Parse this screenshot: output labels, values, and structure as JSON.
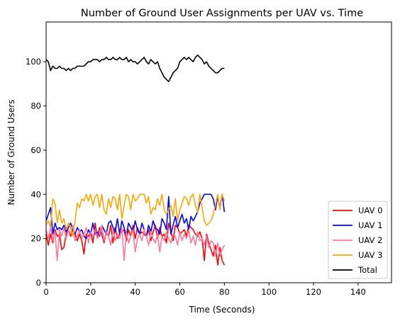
{
  "chart_data": {
    "type": "line",
    "title": "Number of Ground User Assignments per UAV vs. Time",
    "xlabel": "Time (Seconds)",
    "ylabel": "Number of Ground Users",
    "xlim": [
      0,
      155
    ],
    "ylim": [
      0,
      118
    ],
    "xticks": [
      0,
      20,
      40,
      60,
      80,
      100,
      120,
      140
    ],
    "yticks": [
      0,
      20,
      40,
      60,
      80,
      100
    ],
    "grid": false,
    "legend_position": "lower-right",
    "series": [
      {
        "name": "UAV 0",
        "color": "#ff0000",
        "x": [
          0,
          1,
          2,
          3,
          4,
          5,
          6,
          7,
          8,
          9,
          10,
          11,
          12,
          13,
          14,
          15,
          16,
          17,
          18,
          19,
          20,
          21,
          22,
          23,
          24,
          25,
          26,
          27,
          28,
          29,
          30,
          31,
          32,
          33,
          34,
          35,
          36,
          37,
          38,
          39,
          40,
          41,
          42,
          43,
          44,
          45,
          46,
          47,
          48,
          49,
          50,
          51,
          52,
          53,
          54,
          55,
          56,
          57,
          58,
          59,
          60,
          61,
          62,
          63,
          64,
          65,
          66,
          67,
          68,
          69,
          70,
          71,
          72,
          73,
          74,
          75,
          76,
          77,
          78,
          79,
          80
        ],
        "values": [
          22,
          17,
          22,
          18,
          24,
          21,
          22,
          15,
          16,
          22,
          24,
          21,
          24,
          22,
          19,
          22,
          19,
          13,
          22,
          21,
          23,
          18,
          27,
          20,
          25,
          22,
          18,
          23,
          21,
          26,
          18,
          25,
          20,
          22,
          23,
          24,
          19,
          24,
          21,
          26,
          20,
          25,
          22,
          23,
          22,
          21,
          24,
          19,
          23,
          26,
          20,
          25,
          21,
          22,
          18,
          27,
          23,
          19,
          26,
          25,
          22,
          23,
          24,
          21,
          26,
          25,
          24,
          22,
          21,
          23,
          20,
          10,
          22,
          18,
          15,
          12,
          17,
          8,
          16,
          10,
          8
        ]
      },
      {
        "name": "UAV 1",
        "color": "#0000ff",
        "x": [
          0,
          1,
          2,
          3,
          4,
          5,
          6,
          7,
          8,
          9,
          10,
          11,
          12,
          13,
          14,
          15,
          16,
          17,
          18,
          19,
          20,
          21,
          22,
          23,
          24,
          25,
          26,
          27,
          28,
          29,
          30,
          31,
          32,
          33,
          34,
          35,
          36,
          37,
          38,
          39,
          40,
          41,
          42,
          43,
          44,
          45,
          46,
          47,
          48,
          49,
          50,
          51,
          52,
          53,
          54,
          55,
          56,
          57,
          58,
          59,
          60,
          61,
          62,
          63,
          64,
          65,
          66,
          67,
          68,
          69,
          70,
          71,
          72,
          73,
          74,
          75,
          76,
          77,
          78,
          79,
          80
        ],
        "values": [
          28,
          31,
          34,
          22,
          27,
          24,
          25,
          24,
          26,
          23,
          25,
          27,
          24,
          22,
          25,
          23,
          24,
          21,
          20,
          24,
          22,
          27,
          22,
          23,
          21,
          26,
          24,
          22,
          27,
          28,
          25,
          23,
          29,
          22,
          28,
          25,
          21,
          27,
          25,
          23,
          28,
          24,
          22,
          27,
          24,
          21,
          26,
          23,
          28,
          25,
          24,
          22,
          29,
          27,
          24,
          39,
          22,
          26,
          30,
          25,
          28,
          31,
          27,
          29,
          24,
          30,
          28,
          30,
          32,
          36,
          38,
          40,
          40,
          40,
          40,
          38,
          33,
          39,
          34,
          40,
          32
        ]
      },
      {
        "name": "UAV 2",
        "color": "#ff7799",
        "x": [
          0,
          1,
          2,
          3,
          4,
          5,
          6,
          7,
          8,
          9,
          10,
          11,
          12,
          13,
          14,
          15,
          16,
          17,
          18,
          19,
          20,
          21,
          22,
          23,
          24,
          25,
          26,
          27,
          28,
          29,
          30,
          31,
          32,
          33,
          34,
          35,
          36,
          37,
          38,
          39,
          40,
          41,
          42,
          43,
          44,
          45,
          46,
          47,
          48,
          49,
          50,
          51,
          52,
          53,
          54,
          55,
          56,
          57,
          58,
          59,
          60,
          61,
          62,
          63,
          64,
          65,
          66,
          67,
          68,
          69,
          70,
          71,
          72,
          73,
          74,
          75,
          76,
          77,
          78,
          79,
          80
        ],
        "values": [
          24,
          20,
          25,
          19,
          23,
          10,
          24,
          21,
          25,
          20,
          24,
          22,
          26,
          19,
          21,
          24,
          20,
          22,
          25,
          18,
          23,
          21,
          24,
          20,
          22,
          26,
          19,
          23,
          21,
          17,
          24,
          19,
          22,
          20,
          25,
          10,
          23,
          18,
          21,
          24,
          14,
          20,
          22,
          19,
          24,
          21,
          17,
          23,
          20,
          18,
          22,
          14,
          21,
          19,
          23,
          20,
          18,
          22,
          21,
          17,
          23,
          19,
          22,
          20,
          24,
          18,
          21,
          17,
          23,
          19,
          20,
          17,
          21,
          16,
          19,
          18,
          12,
          18,
          12,
          15,
          17
        ]
      },
      {
        "name": "UAV 3",
        "color": "#ffa500",
        "x": [
          0,
          1,
          2,
          3,
          4,
          5,
          6,
          7,
          8,
          9,
          10,
          11,
          12,
          13,
          14,
          15,
          16,
          17,
          18,
          19,
          20,
          21,
          22,
          23,
          24,
          25,
          26,
          27,
          28,
          29,
          30,
          31,
          32,
          33,
          34,
          35,
          36,
          37,
          38,
          39,
          40,
          41,
          42,
          43,
          44,
          45,
          46,
          47,
          48,
          49,
          50,
          51,
          52,
          53,
          54,
          55,
          56,
          57,
          58,
          59,
          60,
          61,
          62,
          63,
          64,
          65,
          66,
          67,
          68,
          69,
          70,
          71,
          72,
          73,
          74,
          75,
          76,
          77,
          78,
          79,
          80
        ],
        "values": [
          26,
          28,
          25,
          38,
          36,
          27,
          33,
          27,
          29,
          24,
          27,
          25,
          21,
          28,
          36,
          34,
          38,
          37,
          40,
          37,
          40,
          35,
          39,
          40,
          34,
          40,
          33,
          31,
          38,
          34,
          39,
          38,
          33,
          40,
          29,
          35,
          40,
          39,
          33,
          40,
          37,
          38,
          40,
          40,
          40,
          36,
          39,
          31,
          34,
          33,
          38,
          35,
          40,
          33,
          31,
          33,
          35,
          30,
          38,
          28,
          33,
          36,
          39,
          38,
          35,
          39,
          40,
          35,
          32,
          40,
          34,
          28,
          26,
          27,
          28,
          31,
          35,
          40,
          33,
          40,
          37
        ]
      },
      {
        "name": "Total",
        "color": "#000000",
        "x": [
          0,
          1,
          2,
          3,
          4,
          5,
          6,
          7,
          8,
          9,
          10,
          11,
          12,
          13,
          14,
          15,
          16,
          17,
          18,
          19,
          20,
          21,
          22,
          23,
          24,
          25,
          26,
          27,
          28,
          29,
          30,
          31,
          32,
          33,
          34,
          35,
          36,
          37,
          38,
          39,
          40,
          41,
          42,
          43,
          44,
          45,
          46,
          47,
          48,
          49,
          50,
          51,
          52,
          53,
          54,
          55,
          56,
          57,
          58,
          59,
          60,
          61,
          62,
          63,
          64,
          65,
          66,
          67,
          68,
          69,
          70,
          71,
          72,
          73,
          74,
          75,
          76,
          77,
          78,
          79,
          80
        ],
        "values": [
          101,
          100,
          96,
          98,
          97,
          97,
          98,
          97,
          97,
          96,
          97,
          96,
          97,
          97,
          98,
          98,
          98,
          98,
          99,
          100,
          100,
          101,
          101,
          101,
          100,
          101,
          101,
          102,
          101,
          101,
          102,
          101,
          101,
          102,
          101,
          101,
          102,
          100,
          101,
          100,
          100,
          99,
          100,
          101,
          102,
          100,
          99,
          101,
          100,
          99,
          100,
          97,
          95,
          93,
          92,
          91,
          93,
          95,
          96,
          97,
          100,
          101,
          102,
          101,
          102,
          101,
          100,
          102,
          103,
          102,
          101,
          99,
          100,
          98,
          97,
          96,
          95,
          95,
          96,
          97,
          97
        ]
      }
    ]
  }
}
